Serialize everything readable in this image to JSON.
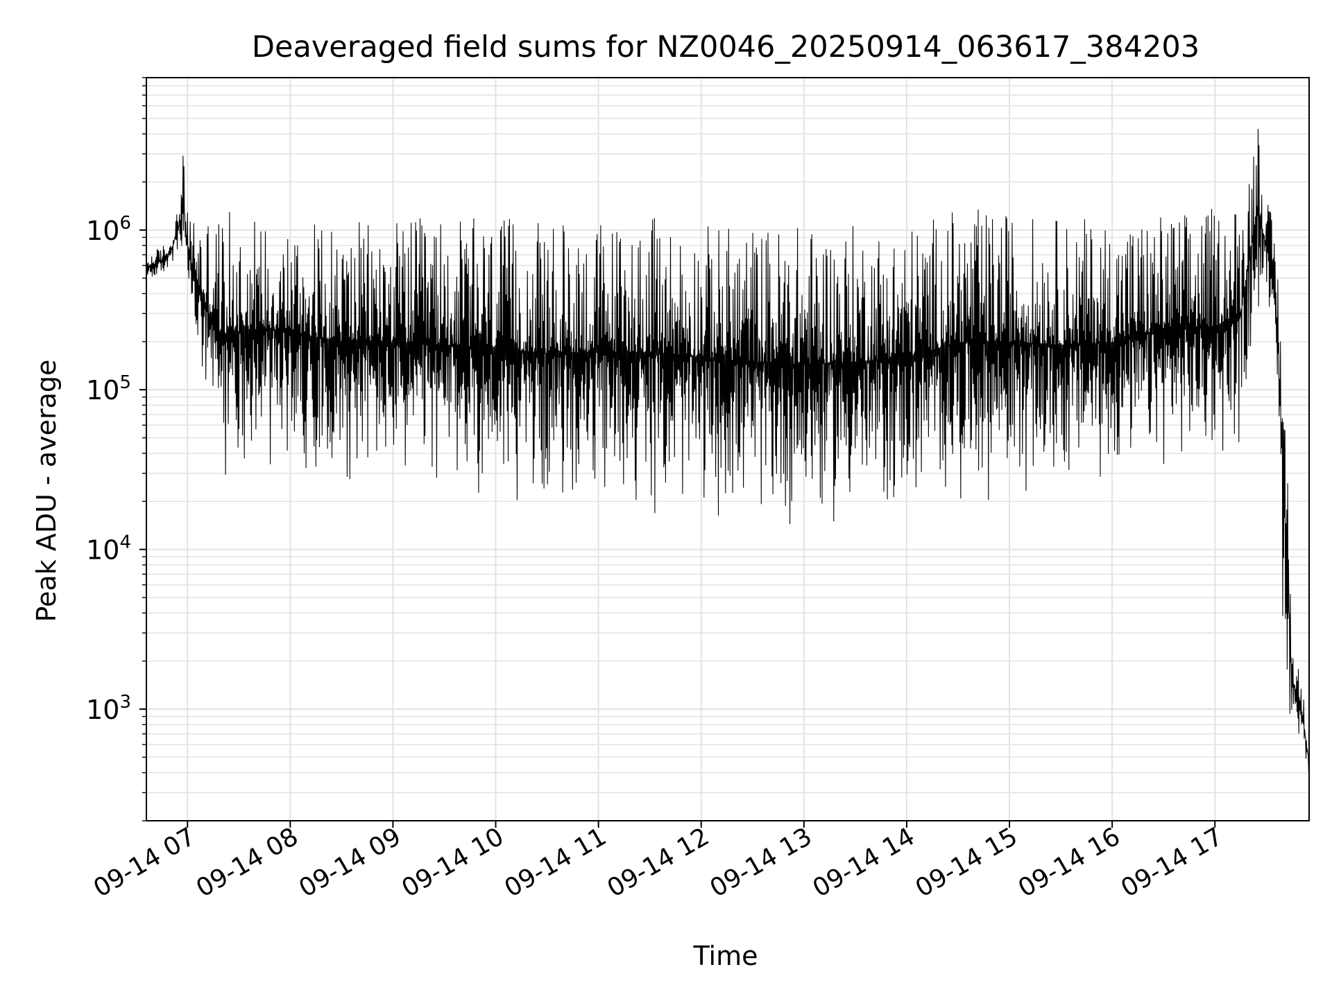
{
  "chart_data": {
    "type": "line",
    "title": "Deaveraged field sums for NZ0046_20250914_063617_384203",
    "xlabel": "Time",
    "ylabel": "Peak ADU - average",
    "x_range": [
      "2025-09-14 06:36",
      "2025-09-14 17:55"
    ],
    "ylim": [
      200,
      9000000
    ],
    "yscale": "log",
    "grid": true,
    "line_color": "#000000",
    "x_ticks": [
      {
        "label": "09-14 07",
        "time": "2025-09-14 07:00"
      },
      {
        "label": "09-14 08",
        "time": "2025-09-14 08:00"
      },
      {
        "label": "09-14 09",
        "time": "2025-09-14 09:00"
      },
      {
        "label": "09-14 10",
        "time": "2025-09-14 10:00"
      },
      {
        "label": "09-14 11",
        "time": "2025-09-14 11:00"
      },
      {
        "label": "09-14 12",
        "time": "2025-09-14 12:00"
      },
      {
        "label": "09-14 13",
        "time": "2025-09-14 13:00"
      },
      {
        "label": "09-14 14",
        "time": "2025-09-14 14:00"
      },
      {
        "label": "09-14 15",
        "time": "2025-09-14 15:00"
      },
      {
        "label": "09-14 16",
        "time": "2025-09-14 16:00"
      },
      {
        "label": "09-14 17",
        "time": "2025-09-14 17:00"
      }
    ],
    "y_ticks": [
      {
        "base": "10",
        "exp": "3",
        "value": 1000
      },
      {
        "base": "10",
        "exp": "4",
        "value": 10000
      },
      {
        "base": "10",
        "exp": "5",
        "value": 100000
      },
      {
        "base": "10",
        "exp": "6",
        "value": 1000000
      }
    ],
    "series": [
      {
        "x": [
          "2025-09-14 06:36",
          "2025-09-14 06:45",
          "2025-09-14 06:50",
          "2025-09-14 06:55",
          "2025-09-14 06:58",
          "2025-09-14 07:00",
          "2025-09-14 07:10",
          "2025-09-14 07:15",
          "2025-09-14 07:20",
          "2025-09-14 07:35",
          "2025-09-14 07:50",
          "2025-09-14 08:00",
          "2025-09-14 08:30",
          "2025-09-14 09:00",
          "2025-09-14 09:30",
          "2025-09-14 10:00",
          "2025-09-14 10:30",
          "2025-09-14 11:00",
          "2025-09-14 11:30",
          "2025-09-14 12:00",
          "2025-09-14 12:30",
          "2025-09-14 13:00",
          "2025-09-14 13:30",
          "2025-09-14 14:00",
          "2025-09-14 14:30",
          "2025-09-14 15:00",
          "2025-09-14 15:30",
          "2025-09-14 16:00",
          "2025-09-14 16:30",
          "2025-09-14 17:00",
          "2025-09-14 17:15",
          "2025-09-14 17:25",
          "2025-09-14 17:30",
          "2025-09-14 17:35",
          "2025-09-14 17:40",
          "2025-09-14 17:45",
          "2025-09-14 17:47",
          "2025-09-14 17:50",
          "2025-09-14 17:55"
        ],
        "y_high": [
          700000,
          800000,
          900000,
          1500000,
          3500000,
          1300000,
          1300000,
          1500000,
          1300000,
          1300000,
          1300000,
          1200000,
          1100000,
          1200000,
          1200000,
          1200000,
          1100000,
          1200000,
          1200000,
          1100000,
          1100000,
          1100000,
          1100000,
          1100000,
          1400000,
          1300000,
          1200000,
          1200000,
          1300000,
          1400000,
          1600000,
          6000000,
          1700000,
          1000000,
          300000,
          3500,
          2000,
          1800,
          600
        ],
        "y_low": [
          450000,
          500000,
          550000,
          700000,
          450000,
          400000,
          60000,
          35000,
          25000,
          30000,
          30000,
          30000,
          25000,
          22000,
          20000,
          18000,
          17000,
          16000,
          16000,
          15000,
          13000,
          12000,
          13000,
          15000,
          18000,
          20000,
          20000,
          22000,
          30000,
          30000,
          40000,
          250000,
          300000,
          250000,
          2000,
          600,
          800,
          600,
          350
        ]
      }
    ]
  }
}
